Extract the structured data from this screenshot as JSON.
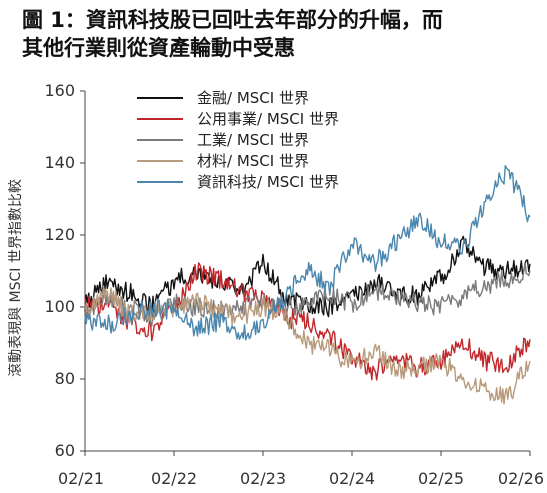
{
  "header": {
    "title_line1": "圖 1：資訊科技股已回吐去年部分的升幅，而",
    "title_line2": "其他行業則從資產輪動中受惠"
  },
  "chart_data": {
    "type": "line",
    "title": "圖 1：資訊科技股已回吐去年部分的升幅，而其他行業則從資產輪動中受惠",
    "ylabel": "滾動表現與 MSCI 世界指數比較",
    "xlabel": "",
    "ylim": [
      60,
      160
    ],
    "yticks": [
      60,
      80,
      100,
      120,
      140,
      160
    ],
    "xlim": [
      "2021-02",
      "2026-02"
    ],
    "xticks": [
      "02/21",
      "02/22",
      "02/23",
      "02/24",
      "02/25",
      "02/26"
    ],
    "grid": false,
    "legend_position": "top-center",
    "x": [
      "02/21",
      "05/21",
      "08/21",
      "11/21",
      "02/22",
      "05/22",
      "08/22",
      "11/22",
      "02/23",
      "05/23",
      "08/23",
      "11/23",
      "02/24",
      "05/24",
      "08/24",
      "11/24",
      "02/25",
      "05/25",
      "08/25",
      "11/25",
      "02/26"
    ],
    "series": [
      {
        "name": "金融/ MSCI 世界",
        "color": "#111111",
        "values": [
          101,
          107,
          104,
          100,
          107,
          110,
          106,
          105,
          112,
          103,
          101,
          100,
          103,
          107,
          104,
          103,
          108,
          117,
          111,
          110,
          112
        ]
      },
      {
        "name": "公用事業/ MSCI 世界",
        "color": "#c0262a",
        "values": [
          100,
          101,
          96,
          93,
          99,
          110,
          108,
          104,
          103,
          97,
          96,
          92,
          86,
          82,
          86,
          83,
          85,
          90,
          85,
          84,
          91
        ]
      },
      {
        "name": "工業/ MSCI 世界",
        "color": "#7a7a7a",
        "values": [
          99,
          103,
          100,
          97,
          101,
          100,
          99,
          100,
          102,
          100,
          101,
          103,
          101,
          104,
          103,
          101,
          100,
          103,
          106,
          108,
          110
        ]
      },
      {
        "name": "材料/ MSCI 世界",
        "color": "#b89a7c",
        "values": [
          99,
          104,
          98,
          99,
          100,
          102,
          99,
          97,
          100,
          97,
          90,
          88,
          84,
          88,
          82,
          83,
          85,
          80,
          77,
          75,
          85
        ]
      },
      {
        "name": "資訊科技/ MSCI 世界",
        "color": "#4a86ad",
        "values": [
          97,
          95,
          98,
          100,
          99,
          94,
          96,
          92,
          96,
          103,
          110,
          106,
          118,
          112,
          118,
          125,
          118,
          116,
          130,
          138,
          125
        ]
      }
    ]
  }
}
